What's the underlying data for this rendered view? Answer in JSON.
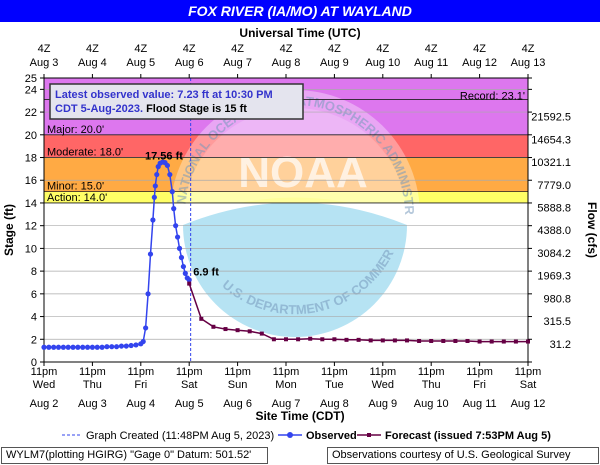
{
  "title": "FOX RIVER (IA/MO) AT WAYLAND",
  "top_axis_title": "Universal Time (UTC)",
  "bottom_axis_title": "Site Time (CDT)",
  "left_axis_title": "Stage (ft)",
  "right_axis_title": "Flow (cfs)",
  "info_box": {
    "line1": "Latest observed value: 7.23 ft at 10:30 PM",
    "line2_prefix": "CDT 5-Aug-2023.",
    "line2_suffix": " Flood Stage is 15 ft"
  },
  "legend": {
    "graph_created": "Graph Created (11:48PM Aug 5, 2023)",
    "observed": "Observed",
    "forecast": "Forecast (issued 7:53PM Aug 5)"
  },
  "footer": {
    "left": "WYLM7(plotting HGIRG) \"Gage 0\" Datum: 501.52'",
    "right": "Observations courtesy of U.S. Geological Survey"
  },
  "watermark": {
    "logo_text": "NOAA",
    "ring_text_top": "NATIONAL OCEANIC AND ATMOSPHERIC ADMINISTRATION",
    "ring_text_bottom": "U.S. DEPARTMENT OF COMMERCE"
  },
  "colors": {
    "title_bg": "#0000ff",
    "record_band": "#cc88ee",
    "major_band": "#dd77ee",
    "moderate_band": "#ff6666",
    "minor_band": "#ffaa44",
    "action_band": "#ffff66",
    "observed": "#3344ee",
    "forecast": "#660044",
    "info_text": "#3333cc"
  },
  "chart_data": {
    "type": "line",
    "ylim": [
      0,
      25
    ],
    "yticks": [
      0,
      2,
      4,
      6,
      8,
      10,
      12,
      14,
      16,
      18,
      20,
      22,
      24,
      25
    ],
    "flow_axis": {
      "labels": [
        "21592.5",
        "14654.3",
        "10321.1",
        "7779.0",
        "5888.8",
        "4388.0",
        "3084.2",
        "1969.3",
        "980.8",
        "315.5",
        "31.2"
      ],
      "at_stage": [
        21.6,
        19.6,
        17.6,
        15.6,
        13.6,
        11.6,
        9.6,
        7.6,
        5.6,
        3.6,
        1.6
      ]
    },
    "bottom_ticks": [
      {
        "time": "11pm",
        "day": "Wed",
        "date": "Aug 2"
      },
      {
        "time": "11pm",
        "day": "Thu",
        "date": "Aug 3"
      },
      {
        "time": "11pm",
        "day": "Fri",
        "date": "Aug 4"
      },
      {
        "time": "11pm",
        "day": "Sat",
        "date": "Aug 5"
      },
      {
        "time": "11pm",
        "day": "Sun",
        "date": "Aug 6"
      },
      {
        "time": "11pm",
        "day": "Mon",
        "date": "Aug 7"
      },
      {
        "time": "11pm",
        "day": "Tue",
        "date": "Aug 8"
      },
      {
        "time": "11pm",
        "day": "Wed",
        "date": "Aug 9"
      },
      {
        "time": "11pm",
        "day": "Thu",
        "date": "Aug 10"
      },
      {
        "time": "11pm",
        "day": "Fri",
        "date": "Aug 11"
      },
      {
        "time": "11pm",
        "day": "Sat",
        "date": "Aug 12"
      }
    ],
    "top_ticks": [
      {
        "time": "4Z",
        "date": "Aug 3"
      },
      {
        "time": "4Z",
        "date": "Aug 4"
      },
      {
        "time": "4Z",
        "date": "Aug 5"
      },
      {
        "time": "4Z",
        "date": "Aug 6"
      },
      {
        "time": "4Z",
        "date": "Aug 7"
      },
      {
        "time": "4Z",
        "date": "Aug 8"
      },
      {
        "time": "4Z",
        "date": "Aug 9"
      },
      {
        "time": "4Z",
        "date": "Aug 10"
      },
      {
        "time": "4Z",
        "date": "Aug 11"
      },
      {
        "time": "4Z",
        "date": "Aug 12"
      },
      {
        "time": "4Z",
        "date": "Aug 13"
      }
    ],
    "flood_categories": [
      {
        "name": "Action",
        "label": "Action: 14.0'",
        "from": 14.0,
        "to": 15.0,
        "color": "#ffff66"
      },
      {
        "name": "Minor",
        "label": "Minor: 15.0'",
        "from": 15.0,
        "to": 18.0,
        "color": "#ffaa44"
      },
      {
        "name": "Moderate",
        "label": "Moderate: 18.0'",
        "from": 18.0,
        "to": 20.0,
        "color": "#ff6666"
      },
      {
        "name": "Major",
        "label": "Major: 20.0'",
        "from": 20.0,
        "to": 25.0,
        "color": "#dd77ee"
      }
    ],
    "record": {
      "label": "Record: 23.1'",
      "value": 23.1
    },
    "graph_created_x": 3.03,
    "series": [
      {
        "name": "Observed",
        "color": "#3344ee",
        "x": [
          0.0,
          0.1,
          0.2,
          0.3,
          0.4,
          0.5,
          0.6,
          0.7,
          0.8,
          0.9,
          1.0,
          1.1,
          1.2,
          1.3,
          1.4,
          1.5,
          1.6,
          1.7,
          1.8,
          1.9,
          2.0,
          2.05,
          2.1,
          2.15,
          2.2,
          2.25,
          2.28,
          2.3,
          2.33,
          2.36,
          2.4,
          2.45,
          2.5,
          2.55,
          2.6,
          2.65,
          2.68,
          2.72,
          2.76,
          2.8,
          2.84,
          2.88,
          2.92,
          2.96,
          3.0
        ],
        "y": [
          1.3,
          1.3,
          1.3,
          1.3,
          1.3,
          1.3,
          1.3,
          1.3,
          1.3,
          1.3,
          1.3,
          1.3,
          1.3,
          1.35,
          1.35,
          1.35,
          1.4,
          1.4,
          1.45,
          1.5,
          1.6,
          1.8,
          3.0,
          6.0,
          9.5,
          12.5,
          14.5,
          15.5,
          16.5,
          17.2,
          17.5,
          17.6,
          17.55,
          17.3,
          16.5,
          15.0,
          13.5,
          12.0,
          11.0,
          10.0,
          9.2,
          8.4,
          7.8,
          7.4,
          7.23
        ]
      },
      {
        "name": "Forecast",
        "color": "#660044",
        "x": [
          3.0,
          3.25,
          3.5,
          3.75,
          4.0,
          4.25,
          4.5,
          4.75,
          5.0,
          5.25,
          5.5,
          5.75,
          6.0,
          6.25,
          6.5,
          6.75,
          7.0,
          7.25,
          7.5,
          7.75,
          8.0,
          8.25,
          8.5,
          8.75,
          9.0,
          9.25,
          9.5,
          9.75,
          10.0
        ],
        "y": [
          6.9,
          3.8,
          3.1,
          2.9,
          2.8,
          2.7,
          2.5,
          2.0,
          2.0,
          2.0,
          2.05,
          2.0,
          2.0,
          1.95,
          1.95,
          1.9,
          1.9,
          1.9,
          1.9,
          1.85,
          1.85,
          1.85,
          1.85,
          1.85,
          1.8,
          1.8,
          1.8,
          1.8,
          1.8
        ]
      }
    ],
    "annotations": [
      {
        "text": "17.56 ft",
        "x": 2.5,
        "y": 17.56
      },
      {
        "text": "6.9 ft",
        "x": 3.0,
        "y": 6.9
      }
    ]
  }
}
